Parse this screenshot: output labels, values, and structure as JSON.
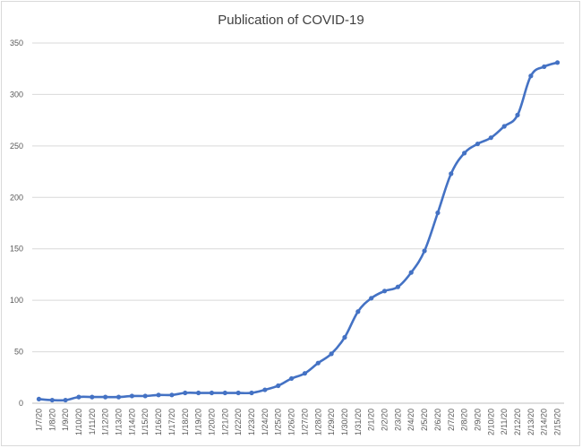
{
  "chart_data": {
    "type": "line",
    "title": "Publication of COVID-19",
    "xlabel": "",
    "ylabel": "",
    "ylim": [
      0,
      350
    ],
    "yticks": [
      0,
      50,
      100,
      150,
      200,
      250,
      300,
      350
    ],
    "grid": true,
    "legend": "none",
    "categories": [
      "1/7/20",
      "1/8/20",
      "1/9/20",
      "1/10/20",
      "1/11/20",
      "1/12/20",
      "1/13/20",
      "1/14/20",
      "1/15/20",
      "1/16/20",
      "1/17/20",
      "1/18/20",
      "1/19/20",
      "1/20/20",
      "1/21/20",
      "1/22/20",
      "1/23/20",
      "1/24/20",
      "1/25/20",
      "1/26/20",
      "1/27/20",
      "1/28/20",
      "1/29/20",
      "1/30/20",
      "1/31/20",
      "2/1/20",
      "2/2/20",
      "2/3/20",
      "2/4/20",
      "2/5/20",
      "2/6/20",
      "2/7/20",
      "2/8/20",
      "2/9/20",
      "2/10/20",
      "2/11/20",
      "2/12/20",
      "2/13/20",
      "2/14/20",
      "2/15/20"
    ],
    "values": [
      4,
      3,
      3,
      6,
      6,
      6,
      6,
      7,
      7,
      8,
      8,
      10,
      10,
      10,
      10,
      10,
      10,
      13,
      17,
      24,
      29,
      39,
      48,
      64,
      89,
      102,
      109,
      113,
      127,
      148,
      185,
      223,
      243,
      252,
      258,
      269,
      280,
      318,
      327,
      331
    ],
    "color": "#4472c4"
  }
}
